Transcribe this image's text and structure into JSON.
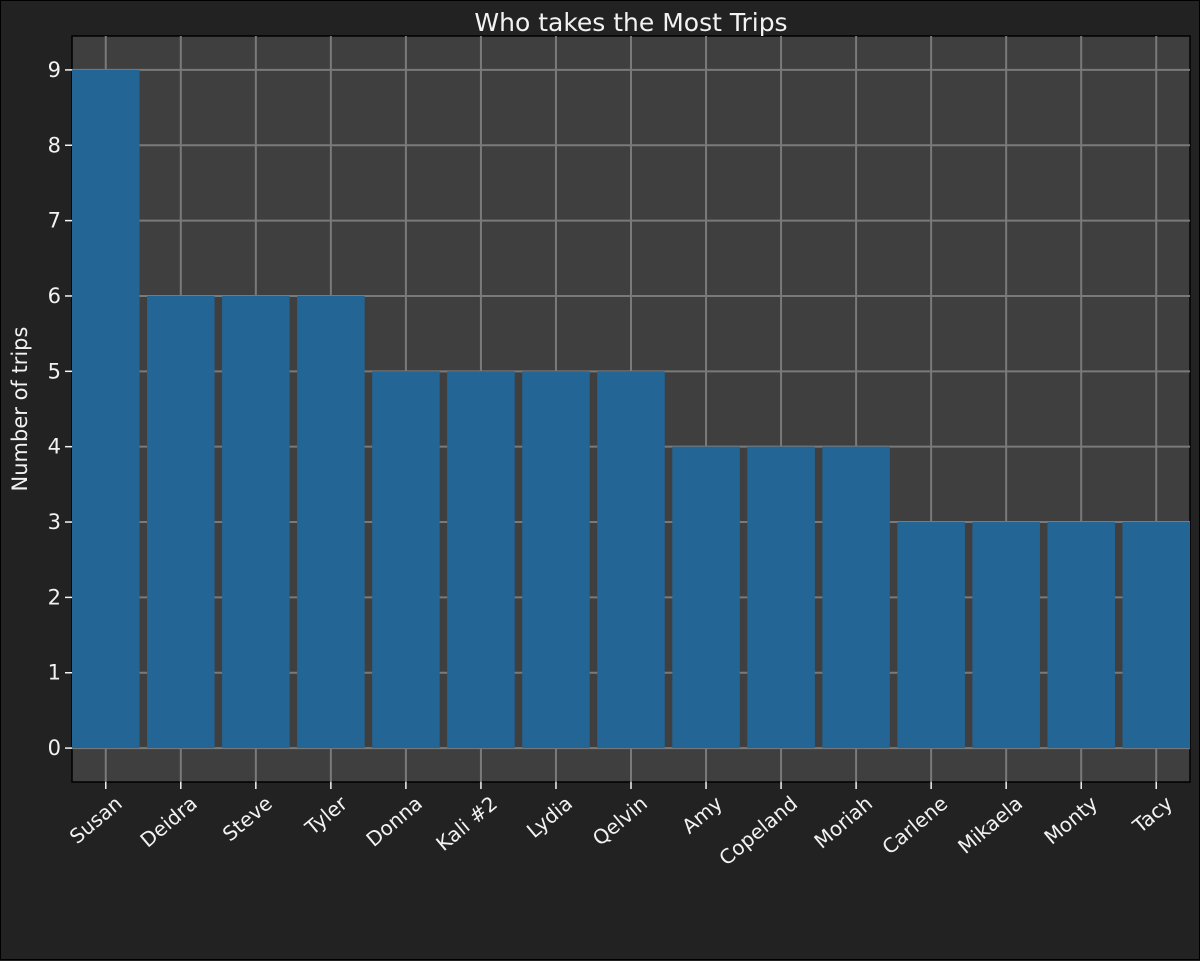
{
  "chart_data": {
    "type": "bar",
    "title": "Who takes the Most Trips",
    "xlabel": "",
    "ylabel": "Number of trips",
    "categories": [
      "Susan",
      "Deidra",
      "Steve",
      "Tyler",
      "Donna",
      "Kali #2",
      "Lydia",
      "Qelvin",
      "Amy",
      "Copeland",
      "Moriah",
      "Carlene",
      "Mikaela",
      "Monty",
      "Tacy"
    ],
    "values": [
      9,
      6,
      6,
      6,
      5,
      5,
      5,
      5,
      4,
      4,
      4,
      3,
      3,
      3,
      3
    ],
    "yticks": [
      "0",
      "1",
      "2",
      "3",
      "4",
      "5",
      "6",
      "7",
      "8",
      "9"
    ],
    "ylim": [
      -0.45,
      9.45
    ],
    "grid": true,
    "legend": "none",
    "colors": {
      "bar": "#236696",
      "plot_background": "#3f3f3f",
      "figure_background": "#222222",
      "grid": "#7a7a7a",
      "text": "#f2f2f2"
    }
  }
}
